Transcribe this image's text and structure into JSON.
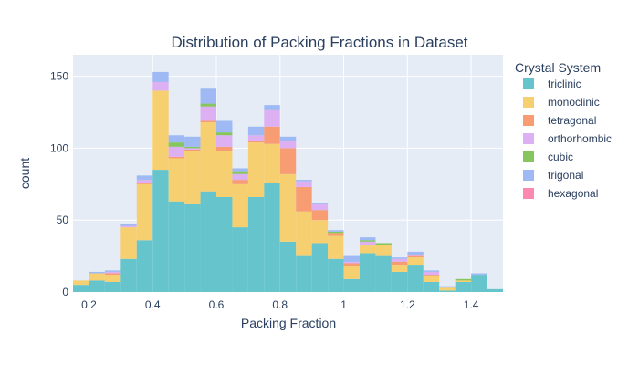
{
  "chart_data": {
    "type": "bar",
    "title": "Distribution of Packing Fractions in Dataset",
    "xlabel": "Packing Fraction",
    "ylabel": "count",
    "xlim": [
      0.15,
      1.5
    ],
    "ylim": [
      0,
      165
    ],
    "bin_width": 0.05,
    "x_ticks": [
      "0.2",
      "0.4",
      "0.6",
      "0.8",
      "1",
      "1.2",
      "1.4"
    ],
    "x_tick_values": [
      0.2,
      0.4,
      0.6,
      0.8,
      1.0,
      1.2,
      1.4
    ],
    "y_ticks": [
      "0",
      "50",
      "100",
      "150"
    ],
    "y_tick_values": [
      0,
      50,
      100,
      150
    ],
    "legend": {
      "title": "Crystal System",
      "placement": "right"
    },
    "bin_starts": [
      0.15,
      0.2,
      0.25,
      0.3,
      0.35,
      0.4,
      0.45,
      0.5,
      0.55,
      0.6,
      0.65,
      0.7,
      0.75,
      0.8,
      0.85,
      0.9,
      0.95,
      1.0,
      1.05,
      1.1,
      1.15,
      1.2,
      1.25,
      1.3,
      1.35,
      1.4,
      1.45
    ],
    "series": [
      {
        "name": "triclinic",
        "color": "#66c5cc",
        "values": [
          5,
          8,
          7,
          23,
          36,
          85,
          63,
          61,
          70,
          66,
          45,
          66,
          76,
          35,
          25,
          34,
          23,
          9,
          27,
          25,
          14,
          19,
          7,
          1,
          7,
          12,
          2
        ]
      },
      {
        "name": "monoclinic",
        "color": "#f6cf71",
        "values": [
          3,
          5,
          5,
          22,
          39,
          55,
          30,
          37,
          48,
          32,
          30,
          38,
          27,
          47,
          31,
          16,
          16,
          9,
          6,
          8,
          5,
          5,
          4,
          2,
          1,
          0,
          0
        ]
      },
      {
        "name": "tetragonal",
        "color": "#f89c74",
        "values": [
          0,
          0,
          1,
          0,
          1,
          0,
          1,
          1,
          1,
          3,
          3,
          1,
          12,
          18,
          17,
          7,
          2,
          2,
          0,
          0,
          2,
          1,
          1,
          0,
          0,
          0,
          0
        ]
      },
      {
        "name": "orthorhombic",
        "color": "#dcb0f2",
        "values": [
          0,
          0,
          1,
          1,
          2,
          6,
          7,
          1,
          10,
          8,
          4,
          4,
          12,
          5,
          4,
          4,
          0,
          1,
          2,
          0,
          2,
          1,
          2,
          0,
          0,
          0,
          0
        ]
      },
      {
        "name": "cubic",
        "color": "#87c55f",
        "values": [
          0,
          0,
          0,
          0,
          0,
          0,
          3,
          1,
          2,
          2,
          2,
          0,
          0,
          0,
          0,
          0,
          1,
          0,
          1,
          1,
          0,
          0,
          0,
          0,
          1,
          0,
          0
        ]
      },
      {
        "name": "trigonal",
        "color": "#9eb9f3",
        "values": [
          0,
          1,
          1,
          1,
          3,
          7,
          5,
          7,
          11,
          8,
          2,
          6,
          3,
          3,
          1,
          1,
          1,
          4,
          2,
          0,
          1,
          2,
          1,
          1,
          0,
          1,
          0
        ]
      },
      {
        "name": "hexagonal",
        "color": "#fe88b1",
        "values": [
          0,
          0,
          0,
          0,
          0,
          0,
          0,
          0,
          0,
          0,
          0,
          0,
          0,
          0,
          0,
          0,
          0,
          0,
          0,
          0,
          0,
          0,
          0,
          0,
          0,
          0,
          0
        ]
      }
    ]
  },
  "colors": {
    "plot_bg": "#e5ecf6",
    "grid": "#ffffff",
    "bar_opacity": 1
  }
}
